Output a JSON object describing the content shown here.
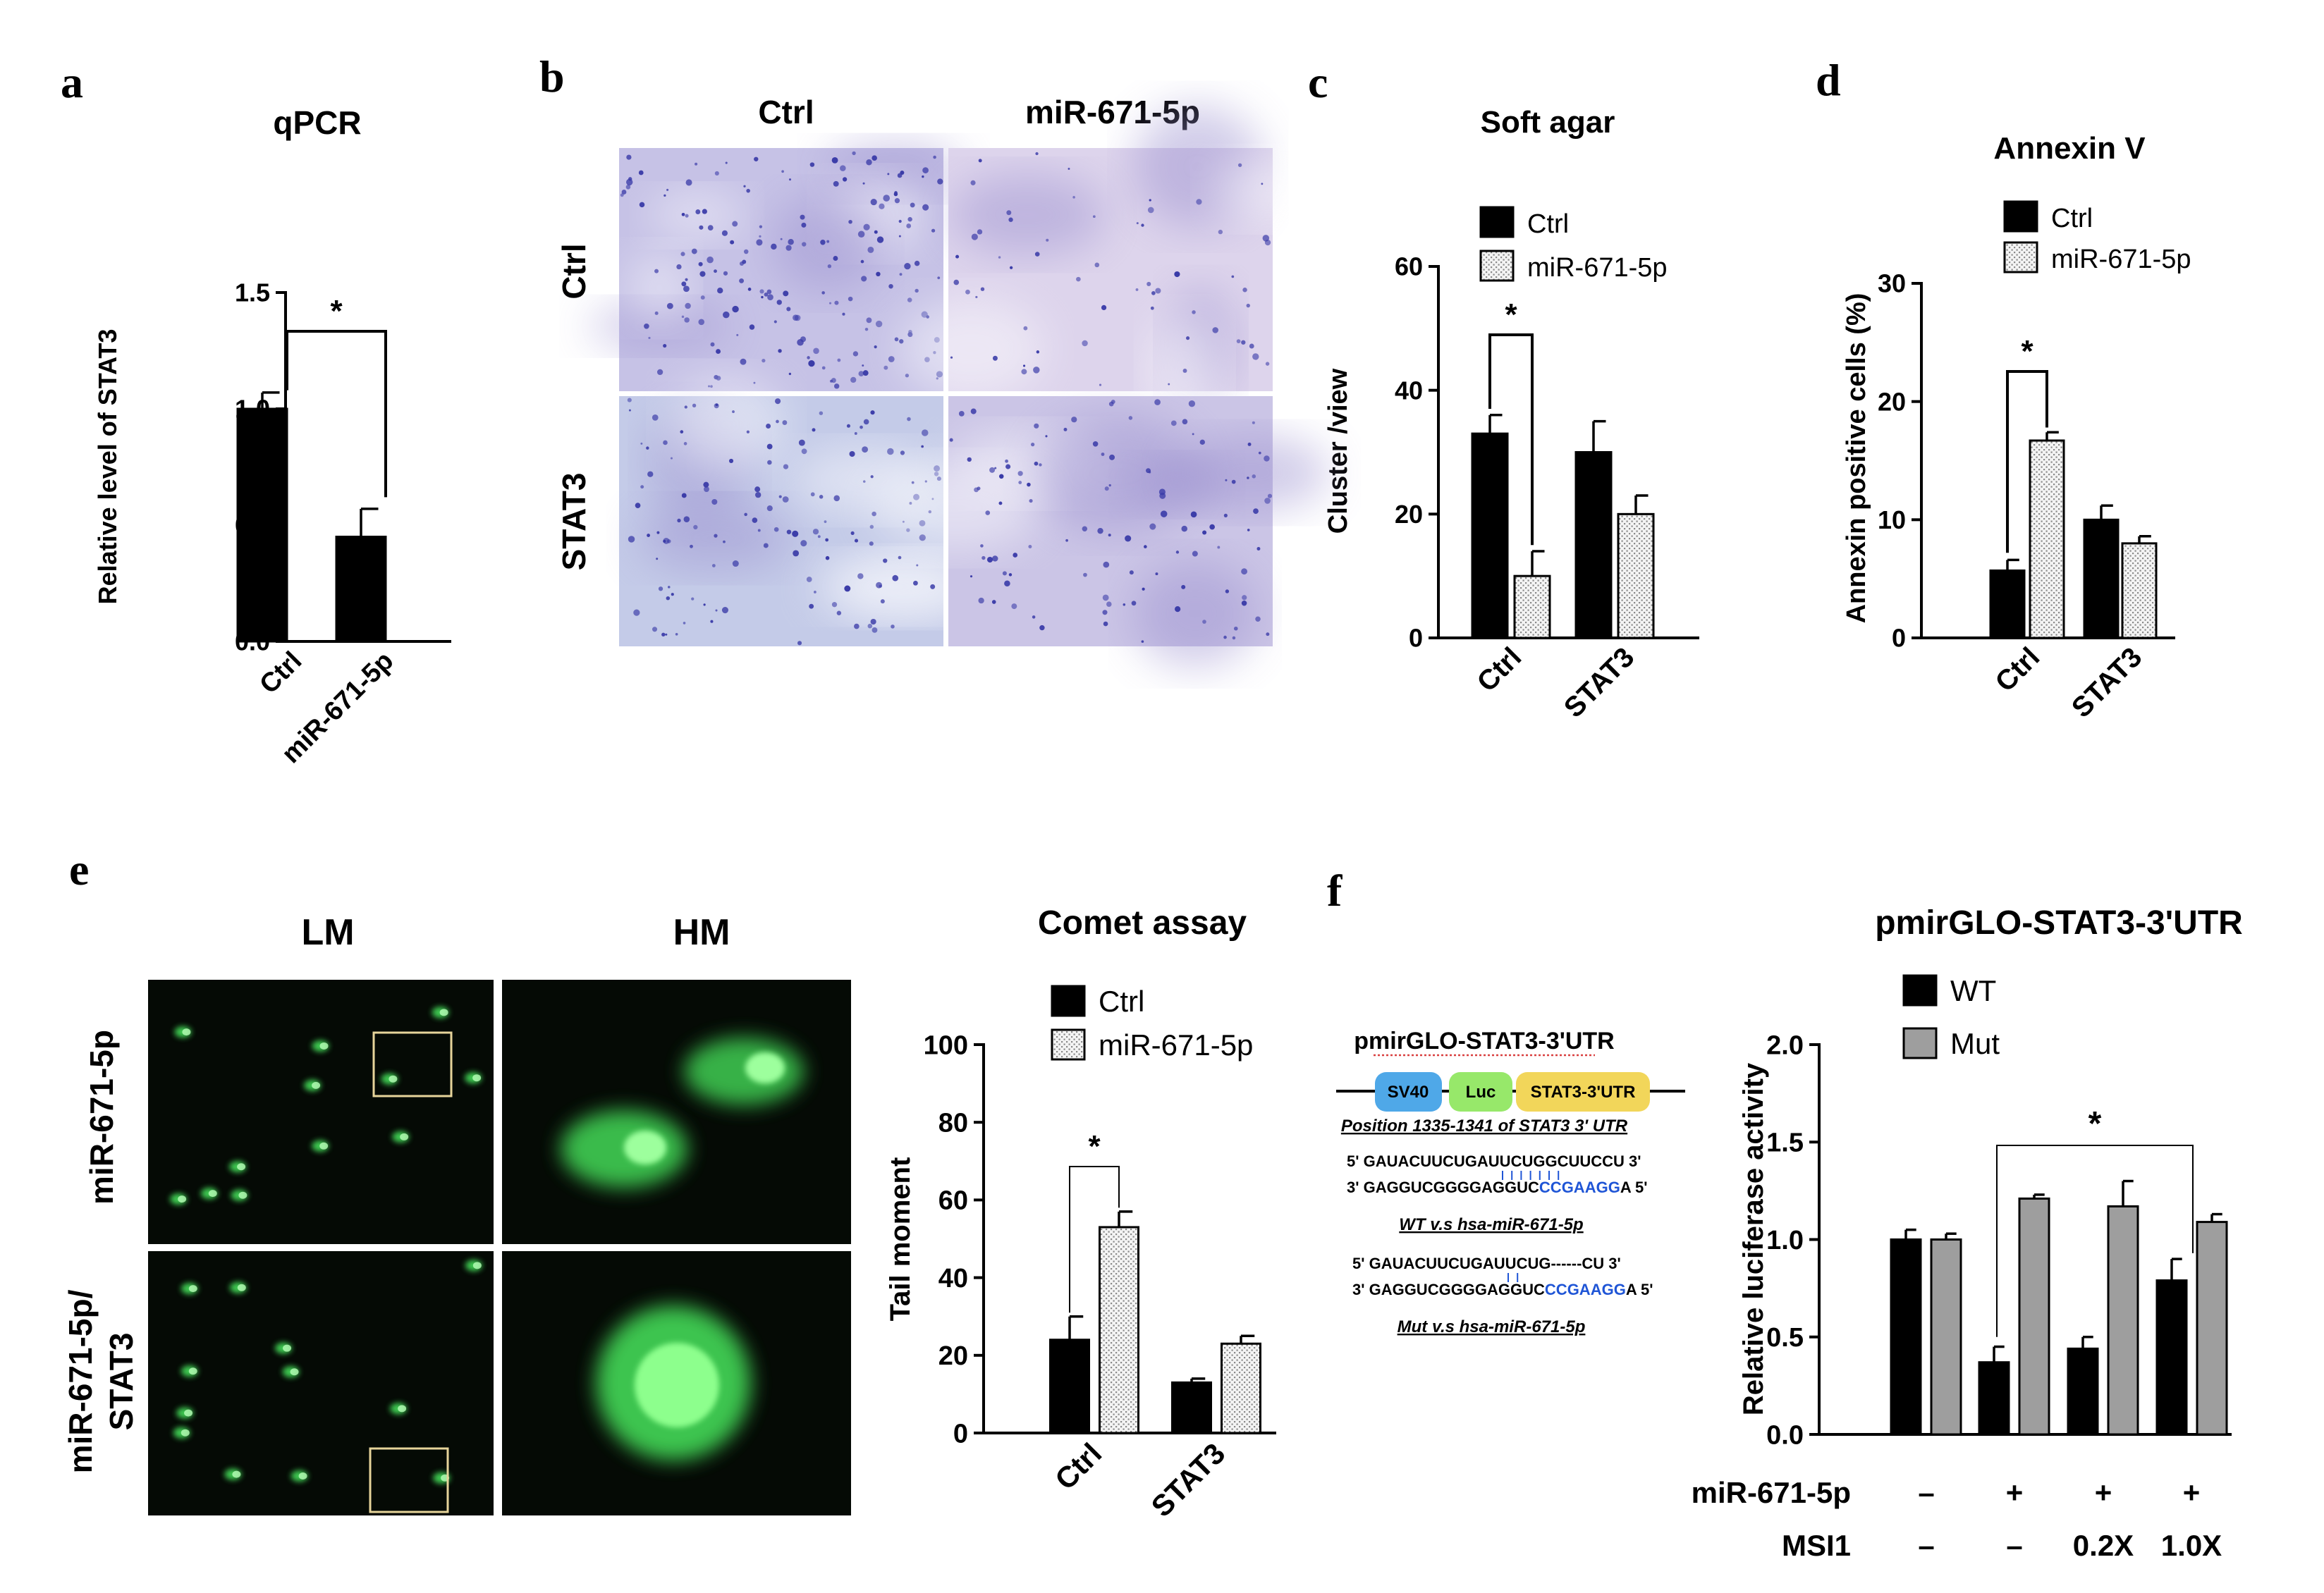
{
  "panel_letters": [
    "a",
    "b",
    "c",
    "d",
    "e",
    "f"
  ],
  "colors": {
    "black_bar": "#000000",
    "gray_bar": "#9e9e9e",
    "stain_bg": "#c4c4e6",
    "stain_dot": "#3a3ba8",
    "fluor_green": "#45e05a",
    "box_outline": "#e6d49a",
    "sv40": "#4fa8e8",
    "luc": "#97e86a",
    "utr": "#f2d65a",
    "seed_blue": "#1f55d6"
  },
  "panel_b": {
    "col_labels": [
      "Ctrl",
      "miR-671-5p"
    ],
    "row_labels": [
      "Ctrl",
      "STAT3"
    ]
  },
  "panel_e": {
    "col_labels": [
      "LM",
      "HM"
    ],
    "row_labels": [
      "miR-671-5p",
      "miR-671-5p/",
      "STAT3"
    ]
  },
  "panel_f_diagram": {
    "title": "pmirGLO-STAT3-3'UTR",
    "boxes": [
      "SV40",
      "Luc",
      "STAT3-3'UTR"
    ],
    "position": "Position 1335-1341 of STAT3 3' UTR",
    "wt_top": "5' GAUACUUCUGAUUCUGGCUUCCU  3'",
    "wt_bot_pre": "3' GAGGUCGGGGAGGUC",
    "wt_bot_seed": "CCGAAGG",
    "wt_bot_post": "A  5'",
    "wt_caption": "WT v.s hsa-miR-671-5p",
    "mut_top": "5' GAUACUUCUGAUUCUG------CU  3'",
    "mut_bot_pre": "3' GAGGUCGGGGAGGUC",
    "mut_bot_seed": "CCGAAGG",
    "mut_bot_post": "A  5'",
    "mut_caption": "Mut v.s hsa-miR-671-5p"
  },
  "chart_data": [
    {
      "id": "a",
      "type": "bar",
      "title": "qPCR",
      "ylabel": "Relative level of STAT3",
      "ylim": [
        0,
        1.5
      ],
      "yticks": [
        "0.0",
        "0.5",
        "1.0",
        "1.5"
      ],
      "categories": [
        "Ctrl",
        "miR-671-5p"
      ],
      "series": [
        {
          "values": [
            1.0,
            0.45
          ],
          "errors": [
            0.07,
            0.12
          ]
        }
      ],
      "significance": "*"
    },
    {
      "id": "c",
      "type": "bar",
      "title": "Soft agar",
      "ylabel": "Cluster /view",
      "ylim": [
        0,
        60
      ],
      "yticks": [
        "0",
        "20",
        "40",
        "60"
      ],
      "categories": [
        "Ctrl",
        "STAT3"
      ],
      "series": [
        {
          "name": "Ctrl",
          "values": [
            33,
            30
          ],
          "errors": [
            3,
            5
          ]
        },
        {
          "name": "miR-671-5p",
          "values": [
            10,
            20
          ],
          "errors": [
            4,
            3
          ]
        }
      ],
      "significance": "*"
    },
    {
      "id": "d",
      "type": "bar",
      "title": "Annexin V",
      "ylabel": "Annexin positive cells (%)",
      "ylim": [
        0,
        30
      ],
      "yticks": [
        "0",
        "10",
        "20",
        "30"
      ],
      "categories": [
        "Ctrl",
        "STAT3"
      ],
      "series": [
        {
          "name": "Ctrl",
          "values": [
            5.7,
            10
          ],
          "errors": [
            0.9,
            1.2
          ]
        },
        {
          "name": "miR-671-5p",
          "values": [
            16.7,
            8
          ],
          "errors": [
            0.7,
            0.6
          ]
        }
      ],
      "significance": "*"
    },
    {
      "id": "e",
      "type": "bar",
      "title": "Comet assay",
      "ylabel": "Tail moment",
      "ylim": [
        0,
        100
      ],
      "yticks": [
        "0",
        "20",
        "40",
        "60",
        "80",
        "100"
      ],
      "categories": [
        "Ctrl",
        "STAT3"
      ],
      "series": [
        {
          "name": "Ctrl",
          "values": [
            24,
            13
          ],
          "errors": [
            6,
            1
          ]
        },
        {
          "name": "miR-671-5p",
          "values": [
            53,
            23
          ],
          "errors": [
            4,
            2
          ]
        }
      ],
      "significance": "*"
    },
    {
      "id": "f",
      "type": "bar",
      "title": "pmirGLO-STAT3-3'UTR",
      "ylabel": "Relative luciferase activity",
      "ylim": [
        0,
        2.0
      ],
      "yticks": [
        "0.0",
        "0.5",
        "1.0",
        "1.5",
        "2.0"
      ],
      "categories": [
        "1",
        "2",
        "3",
        "4"
      ],
      "series": [
        {
          "name": "WT",
          "values": [
            1.0,
            0.37,
            0.44,
            0.79
          ],
          "errors": [
            0.05,
            0.08,
            0.06,
            0.11
          ]
        },
        {
          "name": "Mut",
          "values": [
            1.0,
            1.21,
            1.17,
            1.09
          ],
          "errors": [
            0.03,
            0.02,
            0.13,
            0.04
          ]
        }
      ],
      "condition_rows": [
        {
          "label": "miR-671-5p",
          "values": [
            "–",
            "+",
            "+",
            "+"
          ]
        },
        {
          "label": "MSI1",
          "values": [
            "–",
            "–",
            "0.2X",
            "1.0X"
          ]
        }
      ],
      "significance": "*"
    }
  ]
}
